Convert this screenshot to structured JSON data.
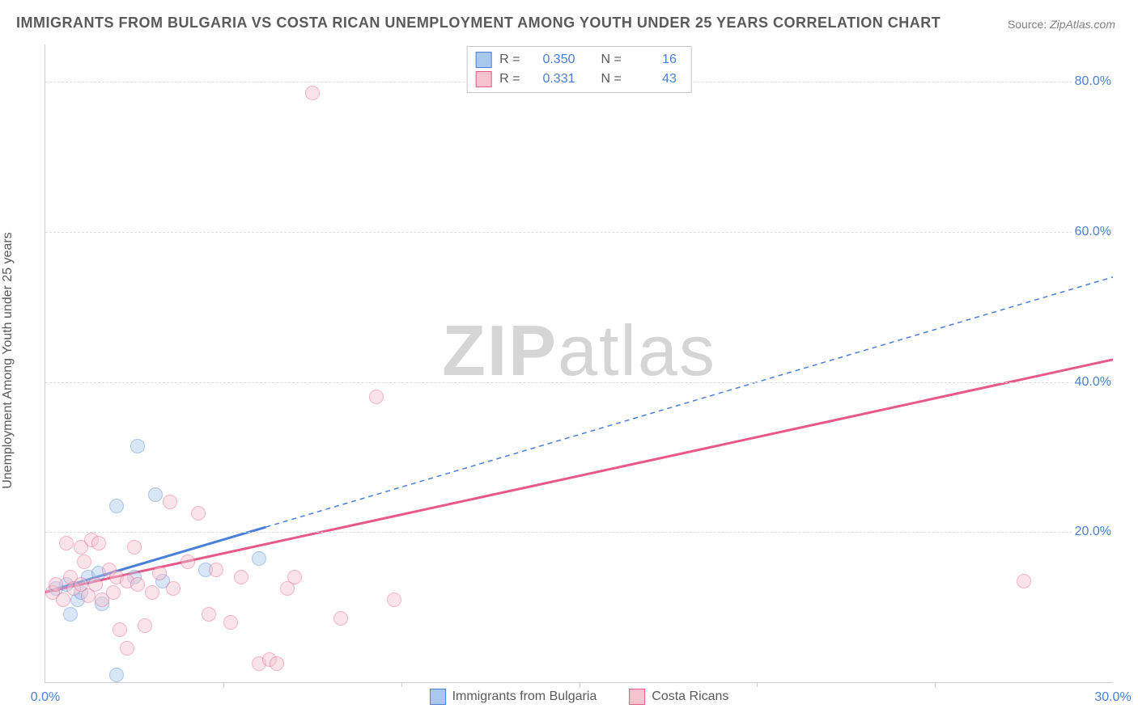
{
  "title": "IMMIGRANTS FROM BULGARIA VS COSTA RICAN UNEMPLOYMENT AMONG YOUTH UNDER 25 YEARS CORRELATION CHART",
  "source_label": "Source:",
  "source_value": "ZipAtlas.com",
  "ylabel": "Unemployment Among Youth under 25 years",
  "watermark_bold": "ZIP",
  "watermark_light": "atlas",
  "chart": {
    "type": "scatter",
    "xlim": [
      0,
      30
    ],
    "ylim": [
      0,
      85
    ],
    "xticks": [
      0,
      30
    ],
    "xtick_labels": [
      "0.0%",
      "30.0%"
    ],
    "xtick_minor": [
      5,
      10,
      15,
      20,
      25
    ],
    "yticks": [
      20,
      40,
      60,
      80
    ],
    "ytick_labels": [
      "20.0%",
      "40.0%",
      "60.0%",
      "80.0%"
    ],
    "background_color": "#ffffff",
    "grid_color": "#dddddd",
    "axis_color": "#cccccc",
    "tick_label_color": "#4a7fd6",
    "title_color": "#5a5a5a",
    "title_fontsize": 18,
    "label_fontsize": 16,
    "point_radius": 9,
    "point_opacity": 0.45,
    "series": [
      {
        "name": "Immigrants from Bulgaria",
        "color_fill": "#a9c8ee",
        "color_stroke": "#4a7fd6",
        "R": "0.350",
        "N": "16",
        "trend": {
          "x1": 0,
          "y1": 12,
          "x2": 30,
          "y2": 54,
          "solid_until_x": 6.2,
          "stroke_width_solid": 3,
          "stroke_width_dash": 1.5,
          "dash": "6,5"
        },
        "points": [
          [
            0.3,
            12.5
          ],
          [
            0.6,
            13.0
          ],
          [
            0.7,
            9.0
          ],
          [
            0.9,
            11.0
          ],
          [
            1.0,
            12.0
          ],
          [
            1.2,
            14.0
          ],
          [
            1.6,
            10.5
          ],
          [
            2.0,
            23.5
          ],
          [
            2.5,
            14.0
          ],
          [
            2.6,
            31.5
          ],
          [
            3.1,
            25.0
          ],
          [
            3.3,
            13.5
          ],
          [
            4.5,
            15.0
          ],
          [
            6.0,
            16.5
          ],
          [
            2.0,
            1.0
          ],
          [
            1.5,
            14.5
          ]
        ]
      },
      {
        "name": "Costa Ricans",
        "color_fill": "#f6c3cf",
        "color_stroke": "#e75a88",
        "R": "0.331",
        "N": "43",
        "trend": {
          "x1": 0,
          "y1": 12,
          "x2": 30,
          "y2": 43,
          "solid_until_x": 30,
          "stroke_width_solid": 3,
          "stroke_width_dash": 0,
          "dash": ""
        },
        "points": [
          [
            0.2,
            12.0
          ],
          [
            0.3,
            13.0
          ],
          [
            0.5,
            11.0
          ],
          [
            0.6,
            18.5
          ],
          [
            0.7,
            14.0
          ],
          [
            0.8,
            12.5
          ],
          [
            1.0,
            18.0
          ],
          [
            1.0,
            13.0
          ],
          [
            1.1,
            16.0
          ],
          [
            1.2,
            11.5
          ],
          [
            1.3,
            19.0
          ],
          [
            1.4,
            13.0
          ],
          [
            1.5,
            18.5
          ],
          [
            1.6,
            11.0
          ],
          [
            1.8,
            15.0
          ],
          [
            1.9,
            12.0
          ],
          [
            2.0,
            14.0
          ],
          [
            2.1,
            7.0
          ],
          [
            2.3,
            13.5
          ],
          [
            2.3,
            4.5
          ],
          [
            2.5,
            18.0
          ],
          [
            2.6,
            13.0
          ],
          [
            2.8,
            7.5
          ],
          [
            3.0,
            12.0
          ],
          [
            3.2,
            14.5
          ],
          [
            3.5,
            24.0
          ],
          [
            3.6,
            12.5
          ],
          [
            4.0,
            16.0
          ],
          [
            4.3,
            22.5
          ],
          [
            4.6,
            9.0
          ],
          [
            4.8,
            15.0
          ],
          [
            5.2,
            8.0
          ],
          [
            5.5,
            14.0
          ],
          [
            6.0,
            2.5
          ],
          [
            6.3,
            3.0
          ],
          [
            6.5,
            2.5
          ],
          [
            6.8,
            12.5
          ],
          [
            7.0,
            14.0
          ],
          [
            7.5,
            78.5
          ],
          [
            8.3,
            8.5
          ],
          [
            9.3,
            38.0
          ],
          [
            9.8,
            11.0
          ],
          [
            27.5,
            13.5
          ]
        ]
      }
    ],
    "legend_bottom": [
      {
        "label": "Immigrants from Bulgaria",
        "fill": "#a9c8ee",
        "stroke": "#4a7fd6"
      },
      {
        "label": "Costa Ricans",
        "fill": "#f6c3cf",
        "stroke": "#e75a88"
      }
    ],
    "legend_top_labels": {
      "R": "R =",
      "N": "N ="
    }
  }
}
